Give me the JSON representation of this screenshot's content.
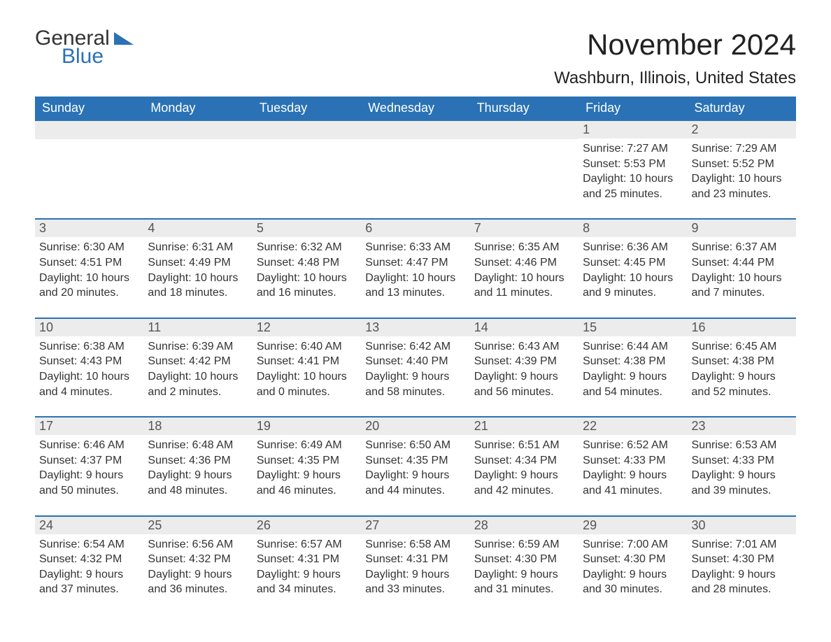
{
  "logo": {
    "text1": "General",
    "text2": "Blue"
  },
  "title": "November 2024",
  "location": "Washburn, Illinois, United States",
  "colors": {
    "header_bg": "#2a72b5",
    "header_fg": "#ffffff",
    "row_sep": "#2a72b5",
    "daynum_bg": "#ececec",
    "text": "#333333",
    "page_bg": "#ffffff"
  },
  "font": {
    "day_header_size": 18,
    "title_size": 42,
    "location_size": 24,
    "body_size": 16
  },
  "day_headers": [
    "Sunday",
    "Monday",
    "Tuesday",
    "Wednesday",
    "Thursday",
    "Friday",
    "Saturday"
  ],
  "weeks": [
    [
      {
        "blank": true
      },
      {
        "blank": true
      },
      {
        "blank": true
      },
      {
        "blank": true
      },
      {
        "blank": true
      },
      {
        "n": "1",
        "sunrise": "Sunrise: 7:27 AM",
        "sunset": "Sunset: 5:53 PM",
        "d1": "Daylight: 10 hours",
        "d2": "and 25 minutes."
      },
      {
        "n": "2",
        "sunrise": "Sunrise: 7:29 AM",
        "sunset": "Sunset: 5:52 PM",
        "d1": "Daylight: 10 hours",
        "d2": "and 23 minutes."
      }
    ],
    [
      {
        "n": "3",
        "sunrise": "Sunrise: 6:30 AM",
        "sunset": "Sunset: 4:51 PM",
        "d1": "Daylight: 10 hours",
        "d2": "and 20 minutes."
      },
      {
        "n": "4",
        "sunrise": "Sunrise: 6:31 AM",
        "sunset": "Sunset: 4:49 PM",
        "d1": "Daylight: 10 hours",
        "d2": "and 18 minutes."
      },
      {
        "n": "5",
        "sunrise": "Sunrise: 6:32 AM",
        "sunset": "Sunset: 4:48 PM",
        "d1": "Daylight: 10 hours",
        "d2": "and 16 minutes."
      },
      {
        "n": "6",
        "sunrise": "Sunrise: 6:33 AM",
        "sunset": "Sunset: 4:47 PM",
        "d1": "Daylight: 10 hours",
        "d2": "and 13 minutes."
      },
      {
        "n": "7",
        "sunrise": "Sunrise: 6:35 AM",
        "sunset": "Sunset: 4:46 PM",
        "d1": "Daylight: 10 hours",
        "d2": "and 11 minutes."
      },
      {
        "n": "8",
        "sunrise": "Sunrise: 6:36 AM",
        "sunset": "Sunset: 4:45 PM",
        "d1": "Daylight: 10 hours",
        "d2": "and 9 minutes."
      },
      {
        "n": "9",
        "sunrise": "Sunrise: 6:37 AM",
        "sunset": "Sunset: 4:44 PM",
        "d1": "Daylight: 10 hours",
        "d2": "and 7 minutes."
      }
    ],
    [
      {
        "n": "10",
        "sunrise": "Sunrise: 6:38 AM",
        "sunset": "Sunset: 4:43 PM",
        "d1": "Daylight: 10 hours",
        "d2": "and 4 minutes."
      },
      {
        "n": "11",
        "sunrise": "Sunrise: 6:39 AM",
        "sunset": "Sunset: 4:42 PM",
        "d1": "Daylight: 10 hours",
        "d2": "and 2 minutes."
      },
      {
        "n": "12",
        "sunrise": "Sunrise: 6:40 AM",
        "sunset": "Sunset: 4:41 PM",
        "d1": "Daylight: 10 hours",
        "d2": "and 0 minutes."
      },
      {
        "n": "13",
        "sunrise": "Sunrise: 6:42 AM",
        "sunset": "Sunset: 4:40 PM",
        "d1": "Daylight: 9 hours",
        "d2": "and 58 minutes."
      },
      {
        "n": "14",
        "sunrise": "Sunrise: 6:43 AM",
        "sunset": "Sunset: 4:39 PM",
        "d1": "Daylight: 9 hours",
        "d2": "and 56 minutes."
      },
      {
        "n": "15",
        "sunrise": "Sunrise: 6:44 AM",
        "sunset": "Sunset: 4:38 PM",
        "d1": "Daylight: 9 hours",
        "d2": "and 54 minutes."
      },
      {
        "n": "16",
        "sunrise": "Sunrise: 6:45 AM",
        "sunset": "Sunset: 4:38 PM",
        "d1": "Daylight: 9 hours",
        "d2": "and 52 minutes."
      }
    ],
    [
      {
        "n": "17",
        "sunrise": "Sunrise: 6:46 AM",
        "sunset": "Sunset: 4:37 PM",
        "d1": "Daylight: 9 hours",
        "d2": "and 50 minutes."
      },
      {
        "n": "18",
        "sunrise": "Sunrise: 6:48 AM",
        "sunset": "Sunset: 4:36 PM",
        "d1": "Daylight: 9 hours",
        "d2": "and 48 minutes."
      },
      {
        "n": "19",
        "sunrise": "Sunrise: 6:49 AM",
        "sunset": "Sunset: 4:35 PM",
        "d1": "Daylight: 9 hours",
        "d2": "and 46 minutes."
      },
      {
        "n": "20",
        "sunrise": "Sunrise: 6:50 AM",
        "sunset": "Sunset: 4:35 PM",
        "d1": "Daylight: 9 hours",
        "d2": "and 44 minutes."
      },
      {
        "n": "21",
        "sunrise": "Sunrise: 6:51 AM",
        "sunset": "Sunset: 4:34 PM",
        "d1": "Daylight: 9 hours",
        "d2": "and 42 minutes."
      },
      {
        "n": "22",
        "sunrise": "Sunrise: 6:52 AM",
        "sunset": "Sunset: 4:33 PM",
        "d1": "Daylight: 9 hours",
        "d2": "and 41 minutes."
      },
      {
        "n": "23",
        "sunrise": "Sunrise: 6:53 AM",
        "sunset": "Sunset: 4:33 PM",
        "d1": "Daylight: 9 hours",
        "d2": "and 39 minutes."
      }
    ],
    [
      {
        "n": "24",
        "sunrise": "Sunrise: 6:54 AM",
        "sunset": "Sunset: 4:32 PM",
        "d1": "Daylight: 9 hours",
        "d2": "and 37 minutes."
      },
      {
        "n": "25",
        "sunrise": "Sunrise: 6:56 AM",
        "sunset": "Sunset: 4:32 PM",
        "d1": "Daylight: 9 hours",
        "d2": "and 36 minutes."
      },
      {
        "n": "26",
        "sunrise": "Sunrise: 6:57 AM",
        "sunset": "Sunset: 4:31 PM",
        "d1": "Daylight: 9 hours",
        "d2": "and 34 minutes."
      },
      {
        "n": "27",
        "sunrise": "Sunrise: 6:58 AM",
        "sunset": "Sunset: 4:31 PM",
        "d1": "Daylight: 9 hours",
        "d2": "and 33 minutes."
      },
      {
        "n": "28",
        "sunrise": "Sunrise: 6:59 AM",
        "sunset": "Sunset: 4:30 PM",
        "d1": "Daylight: 9 hours",
        "d2": "and 31 minutes."
      },
      {
        "n": "29",
        "sunrise": "Sunrise: 7:00 AM",
        "sunset": "Sunset: 4:30 PM",
        "d1": "Daylight: 9 hours",
        "d2": "and 30 minutes."
      },
      {
        "n": "30",
        "sunrise": "Sunrise: 7:01 AM",
        "sunset": "Sunset: 4:30 PM",
        "d1": "Daylight: 9 hours",
        "d2": "and 28 minutes."
      }
    ]
  ]
}
